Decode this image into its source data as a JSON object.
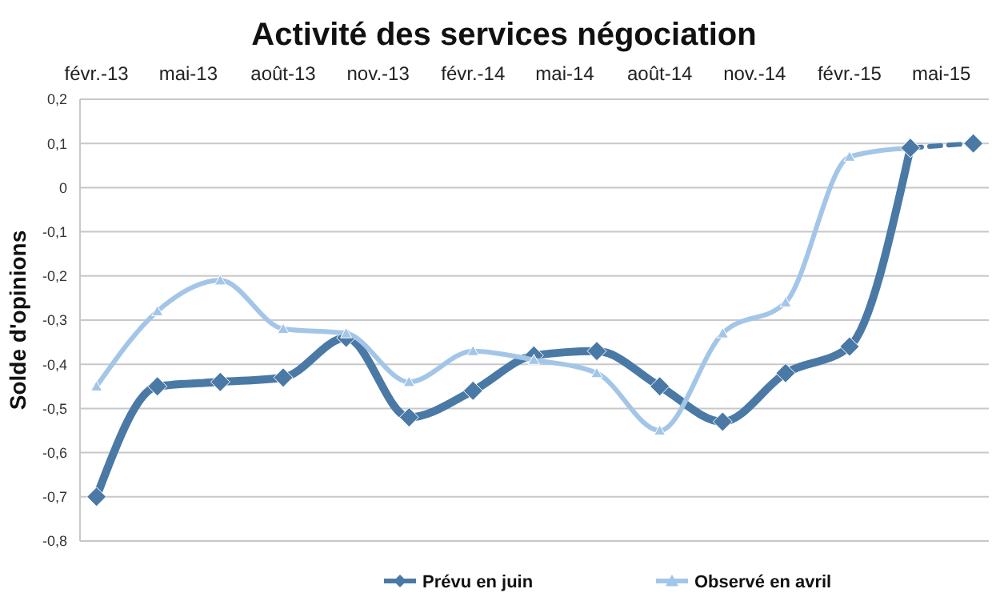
{
  "chart_data": {
    "type": "line",
    "title": "Activité des services négociation",
    "ylabel": "Solde d'opinions",
    "x": [
      "2013-02",
      "2013-04",
      "2013-06",
      "2013-08",
      "2013-10",
      "2013-12",
      "2014-02",
      "2014-04",
      "2014-06",
      "2014-08",
      "2014-10",
      "2014-12",
      "2015-02",
      "2015-04"
    ],
    "series": [
      {
        "name": "Prévu en juin",
        "color": "#4a79a6",
        "marker": "diamond",
        "values": [
          -0.7,
          -0.45,
          -0.44,
          -0.43,
          -0.34,
          -0.52,
          -0.46,
          -0.38,
          -0.37,
          -0.45,
          -0.53,
          -0.42,
          -0.36,
          0.09
        ]
      },
      {
        "name": "Observé en avril",
        "color": "#a3c6e8",
        "marker": "triangle",
        "values": [
          -0.45,
          -0.28,
          -0.21,
          -0.32,
          -0.33,
          -0.44,
          -0.37,
          -0.39,
          -0.42,
          -0.55,
          -0.33,
          -0.26,
          0.07,
          0.09
        ]
      },
      {
        "color": "#4a79a6",
        "marker": "diamond",
        "line_style": "dashed",
        "x": [
          "2015-04",
          "2015-06"
        ],
        "values": [
          0.09,
          0.1
        ]
      }
    ],
    "xlim": [
      "2013-01-16",
      "2015-06-16"
    ],
    "xticks": [
      {
        "value": "2013-02",
        "label": "févr.-13"
      },
      {
        "value": "2013-05",
        "label": "mai-13"
      },
      {
        "value": "2013-08",
        "label": "août-13"
      },
      {
        "value": "2013-11",
        "label": "nov.-13"
      },
      {
        "value": "2014-02",
        "label": "févr.-14"
      },
      {
        "value": "2014-05",
        "label": "mai-14"
      },
      {
        "value": "2014-08",
        "label": "août-14"
      },
      {
        "value": "2014-11",
        "label": "nov.-14"
      },
      {
        "value": "2015-02",
        "label": "févr.-15"
      },
      {
        "value": "2015-05",
        "label": "mai-15"
      }
    ],
    "ylim": [
      -0.8,
      0.2
    ],
    "yticks": [
      {
        "value": 0.2,
        "label": "0,2"
      },
      {
        "value": 0.1,
        "label": "0,1"
      },
      0,
      {
        "value": -0.1,
        "label": "-0,1"
      },
      {
        "value": -0.2,
        "label": "-0,2"
      },
      {
        "value": -0.3,
        "label": "-0,3"
      },
      {
        "value": -0.4,
        "label": "-0,4"
      },
      {
        "value": -0.5,
        "label": "-0,5"
      },
      {
        "value": -0.6,
        "label": "-0,6"
      },
      {
        "value": -0.7,
        "label": "-0,7"
      },
      {
        "value": -0.8,
        "label": "-0,8"
      }
    ],
    "grid": "y",
    "legend": "bottom",
    "line_style": "solid"
  }
}
